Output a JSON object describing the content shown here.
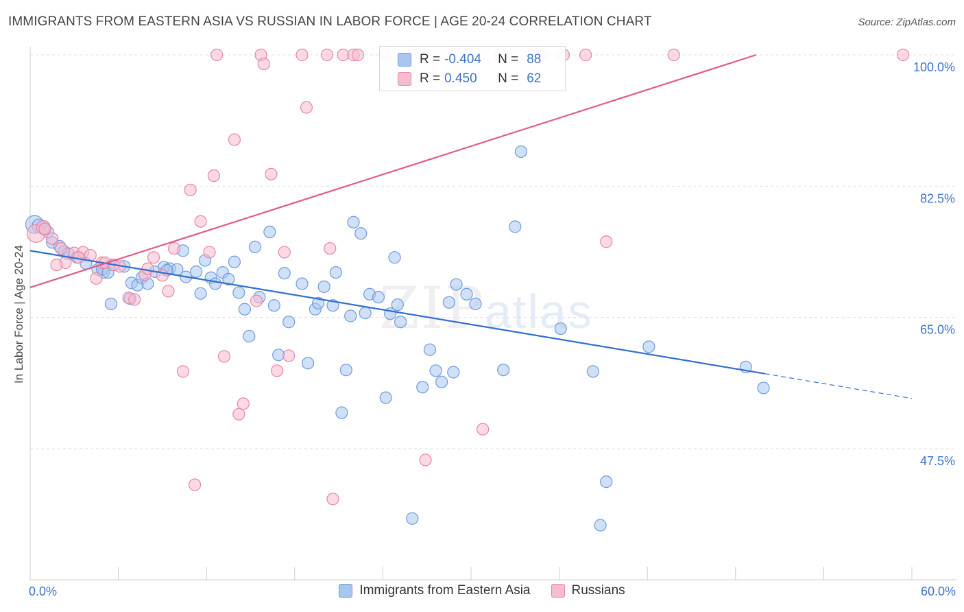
{
  "title": "IMMIGRANTS FROM EASTERN ASIA VS RUSSIAN IN LABOR FORCE | AGE 20-24 CORRELATION CHART",
  "source": "Source: ZipAtlas.com",
  "watermark": {
    "zip": "ZIP",
    "atlas": "atlas"
  },
  "legend": {
    "rows": [
      {
        "r_label": "R =",
        "r_value": "-0.404",
        "n_label": "N =",
        "n_value": "88",
        "color": "#a9c6ee",
        "border": "#6e9be0"
      },
      {
        "r_label": "R =",
        "r_value": "0.450",
        "n_label": "N =",
        "n_value": "62",
        "color": "#f7bcd0",
        "border": "#e985a8"
      }
    ]
  },
  "bottom_legend": [
    {
      "label": "Immigrants from Eastern Asia",
      "color": "#a9c6ee",
      "border": "#6e9be0"
    },
    {
      "label": "Russians",
      "color": "#f7bcd0",
      "border": "#e985a8"
    }
  ],
  "chart_data": {
    "type": "scatter",
    "title": "IMMIGRANTS FROM EASTERN ASIA VS RUSSIAN IN LABOR FORCE | AGE 20-24 CORRELATION CHART",
    "xlabel": "",
    "ylabel": "In Labor Force | Age 20-24",
    "xlim": [
      0,
      60
    ],
    "ylim": [
      32,
      102
    ],
    "x_tick_labels": {
      "left": "0.0%",
      "right": "60.0%"
    },
    "y_ticks": [
      {
        "value": 100.0,
        "label": "100.0%"
      },
      {
        "value": 82.5,
        "label": "82.5%"
      },
      {
        "value": 65.0,
        "label": "65.0%"
      },
      {
        "value": 47.5,
        "label": "47.5%"
      }
    ],
    "grid": true,
    "series": [
      {
        "name": "Immigrants from Eastern Asia",
        "color": "#6e9be0",
        "fill": "#a9c6ee",
        "trend": {
          "x": [
            0,
            50.0,
            60
          ],
          "y": [
            73.9,
            57.5,
            54.2
          ],
          "solid_until": 50.0,
          "color": "#2f6fce"
        },
        "points": [
          [
            0.3,
            77.4
          ],
          [
            0.6,
            77.2
          ],
          [
            0.9,
            77.0
          ],
          [
            1.0,
            76.8
          ],
          [
            1.2,
            76.4
          ],
          [
            1.5,
            75.0
          ],
          [
            2.0,
            74.5
          ],
          [
            2.3,
            73.8
          ],
          [
            2.6,
            73.5
          ],
          [
            3.2,
            73.0
          ],
          [
            3.8,
            72.2
          ],
          [
            4.6,
            71.4
          ],
          [
            5.0,
            71.0
          ],
          [
            5.6,
            72.0
          ],
          [
            6.4,
            71.8
          ],
          [
            6.8,
            67.5
          ],
          [
            5.5,
            66.8
          ],
          [
            6.9,
            69.6
          ],
          [
            7.3,
            69.3
          ],
          [
            7.6,
            70.3
          ],
          [
            8.0,
            69.5
          ],
          [
            8.5,
            71.1
          ],
          [
            9.1,
            71.7
          ],
          [
            9.5,
            71.5
          ],
          [
            10.0,
            71.4
          ],
          [
            10.4,
            73.9
          ],
          [
            10.6,
            70.4
          ],
          [
            11.3,
            71.1
          ],
          [
            11.6,
            68.2
          ],
          [
            11.9,
            72.6
          ],
          [
            12.3,
            70.3
          ],
          [
            12.6,
            69.5
          ],
          [
            13.1,
            71.0
          ],
          [
            13.5,
            70.1
          ],
          [
            13.9,
            72.4
          ],
          [
            14.2,
            68.3
          ],
          [
            14.6,
            66.1
          ],
          [
            14.9,
            62.5
          ],
          [
            15.3,
            74.4
          ],
          [
            15.6,
            67.7
          ],
          [
            16.3,
            76.4
          ],
          [
            16.6,
            66.6
          ],
          [
            16.9,
            60.0
          ],
          [
            17.3,
            70.9
          ],
          [
            17.6,
            64.4
          ],
          [
            18.5,
            69.5
          ],
          [
            18.9,
            58.9
          ],
          [
            19.4,
            66.1
          ],
          [
            19.6,
            66.9
          ],
          [
            20.0,
            69.1
          ],
          [
            20.6,
            66.6
          ],
          [
            20.8,
            71.0
          ],
          [
            21.2,
            52.3
          ],
          [
            21.5,
            58.0
          ],
          [
            21.8,
            65.2
          ],
          [
            22.0,
            77.7
          ],
          [
            22.5,
            76.2
          ],
          [
            22.8,
            65.6
          ],
          [
            23.1,
            68.1
          ],
          [
            23.7,
            67.7
          ],
          [
            24.2,
            54.3
          ],
          [
            24.5,
            65.5
          ],
          [
            24.8,
            73.0
          ],
          [
            25.0,
            66.7
          ],
          [
            25.2,
            64.4
          ],
          [
            26.7,
            55.7
          ],
          [
            27.2,
            60.7
          ],
          [
            27.6,
            57.9
          ],
          [
            28.0,
            56.4
          ],
          [
            28.5,
            67.0
          ],
          [
            28.8,
            57.7
          ],
          [
            29.0,
            69.4
          ],
          [
            29.7,
            68.1
          ],
          [
            30.3,
            66.8
          ],
          [
            32.2,
            58.0
          ],
          [
            33.0,
            77.1
          ],
          [
            33.4,
            87.1
          ],
          [
            36.1,
            63.5
          ],
          [
            38.3,
            57.8
          ],
          [
            38.8,
            37.3
          ],
          [
            39.2,
            43.1
          ],
          [
            42.1,
            61.1
          ],
          [
            48.7,
            58.4
          ],
          [
            49.9,
            55.6
          ],
          [
            26.0,
            38.2
          ],
          [
            4.9,
            71.4
          ],
          [
            5.3,
            71.0
          ],
          [
            9.3,
            71.3
          ]
        ]
      },
      {
        "name": "Russians",
        "color": "#e985a8",
        "fill": "#f7bcd0",
        "trend": {
          "x": [
            0,
            49.4
          ],
          "y": [
            69.0,
            100.0
          ],
          "solid_until": 49.4,
          "color": "#e2588a"
        },
        "points": [
          [
            0.4,
            76.2
          ],
          [
            0.9,
            77.0
          ],
          [
            1.0,
            76.8
          ],
          [
            1.5,
            75.5
          ],
          [
            2.1,
            74.2
          ],
          [
            2.4,
            72.3
          ],
          [
            3.0,
            73.6
          ],
          [
            3.6,
            73.7
          ],
          [
            4.1,
            73.3
          ],
          [
            4.5,
            70.2
          ],
          [
            4.9,
            72.3
          ],
          [
            5.1,
            72.3
          ],
          [
            5.7,
            72.0
          ],
          [
            6.1,
            71.8
          ],
          [
            6.7,
            67.6
          ],
          [
            7.1,
            67.4
          ],
          [
            7.8,
            70.7
          ],
          [
            8.0,
            71.5
          ],
          [
            8.4,
            73.0
          ],
          [
            9.0,
            70.6
          ],
          [
            9.4,
            68.5
          ],
          [
            9.8,
            74.2
          ],
          [
            10.4,
            57.8
          ],
          [
            10.9,
            82.0
          ],
          [
            11.2,
            42.7
          ],
          [
            11.6,
            77.8
          ],
          [
            12.2,
            73.7
          ],
          [
            12.5,
            83.9
          ],
          [
            12.7,
            100.0
          ],
          [
            13.2,
            59.8
          ],
          [
            13.9,
            88.7
          ],
          [
            14.2,
            52.1
          ],
          [
            14.5,
            53.5
          ],
          [
            15.4,
            67.2
          ],
          [
            15.7,
            100.0
          ],
          [
            15.9,
            98.8
          ],
          [
            16.4,
            84.1
          ],
          [
            16.8,
            57.9
          ],
          [
            17.3,
            73.7
          ],
          [
            17.6,
            59.9
          ],
          [
            18.5,
            100.0
          ],
          [
            18.8,
            93.0
          ],
          [
            20.2,
            100.0
          ],
          [
            20.4,
            74.2
          ],
          [
            20.6,
            40.8
          ],
          [
            21.3,
            100.0
          ],
          [
            22.0,
            100.0
          ],
          [
            22.3,
            100.0
          ],
          [
            24.2,
            100.0
          ],
          [
            26.0,
            100.0
          ],
          [
            26.7,
            100.0
          ],
          [
            26.9,
            46.0
          ],
          [
            30.8,
            50.1
          ],
          [
            32.0,
            100.0
          ],
          [
            34.8,
            100.0
          ],
          [
            36.3,
            100.0
          ],
          [
            37.8,
            100.0
          ],
          [
            39.2,
            75.1
          ],
          [
            43.8,
            100.0
          ],
          [
            59.4,
            100.0
          ],
          [
            1.8,
            72.0
          ],
          [
            3.3,
            73.0
          ]
        ]
      }
    ]
  }
}
